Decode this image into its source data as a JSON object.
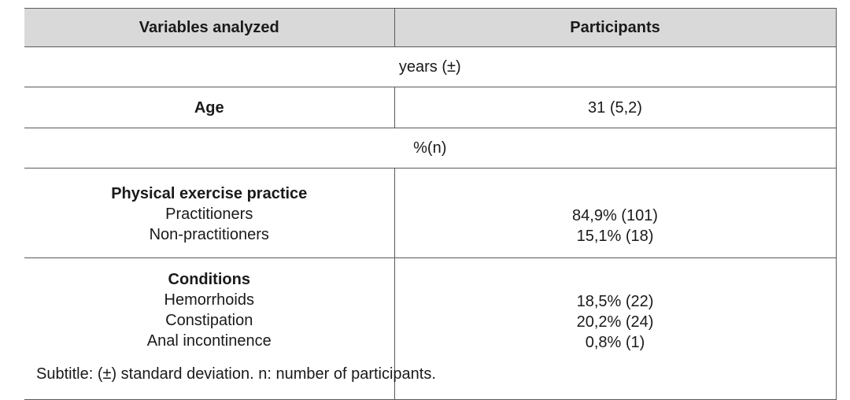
{
  "table": {
    "headers": [
      "Variables analyzed",
      "Participants"
    ],
    "years_row": "years (±)",
    "age": {
      "label": "Age",
      "value": "31 (5,2)"
    },
    "percent_row": "%(n)",
    "physical_exercise": {
      "title": "Physical exercise practice",
      "items": [
        "Practitioners",
        "Non-practitioners"
      ],
      "values": [
        "84,9% (101)",
        "15,1% (18)"
      ]
    },
    "conditions": {
      "title": "Conditions",
      "items": [
        "Hemorrhoids",
        "Constipation",
        "Anal incontinence"
      ],
      "values": [
        "18,5% (22)",
        "20,2% (24)",
        "0,8% (1)"
      ]
    }
  },
  "subtitle": "Subtitle: (±) standard deviation. n: number of participants."
}
